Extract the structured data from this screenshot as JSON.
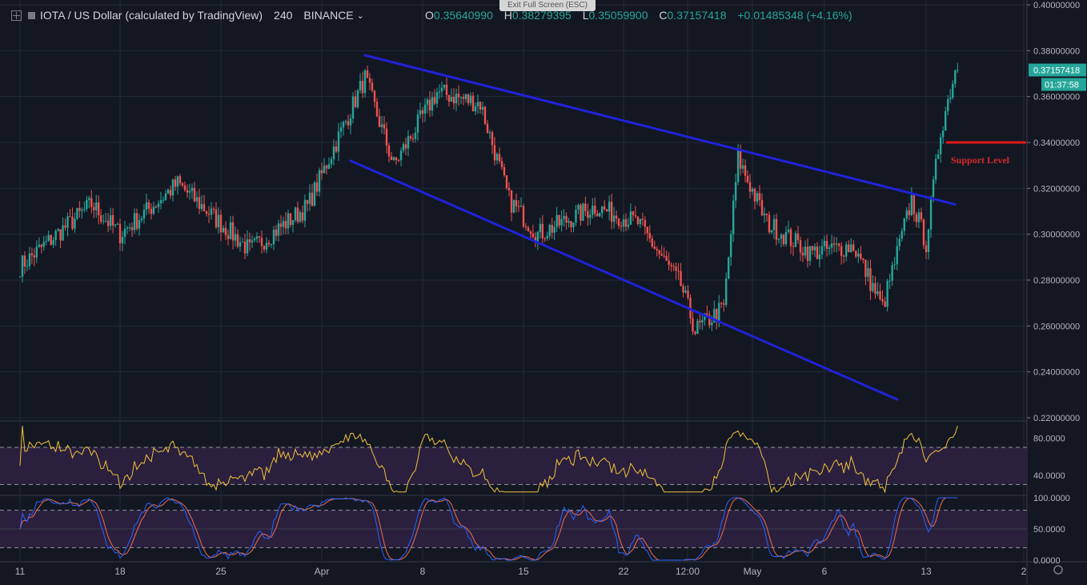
{
  "header": {
    "symbol": "IOTA / US Dollar (calculated by TradingView)",
    "interval": "240",
    "exchange": "BINANCE",
    "exit_fullscreen": "Exit Full Screen (ESC)",
    "ohlc": {
      "o_label": "O",
      "o": "0.35640990",
      "h_label": "H",
      "h": "0.38279395",
      "l_label": "L",
      "l": "0.35059900",
      "c_label": "C",
      "c": "0.37157418",
      "change": "+0.01485348 (+4.16%)"
    }
  },
  "price_badge": "0.37157418",
  "countdown_badge": "01:37:58",
  "annotation": "Support Level",
  "colors": {
    "up": "#26a69a",
    "down": "#ef5350",
    "channel": "#1f22d8",
    "support": "#e01919",
    "rsi": "#f0c23b",
    "k": "#2962ff",
    "d": "#ef6c4e"
  },
  "chart_data": [
    {
      "type": "candlestick",
      "y_ticks": [
        "0.40000000",
        "0.38000000",
        "0.36000000",
        "0.34000000",
        "0.32000000",
        "0.30000000",
        "0.28000000",
        "0.26000000",
        "0.24000000",
        "0.22000000"
      ],
      "ylim": [
        0.22,
        0.4
      ],
      "x_ticks": [
        "11",
        "18",
        "25",
        "Apr",
        "8",
        "15",
        "22",
        "12:00",
        "May",
        "6",
        "13",
        "2"
      ],
      "key_points": [
        {
          "t": "Mar 11",
          "close": 0.286
        },
        {
          "t": "Mar 16",
          "close": 0.313
        },
        {
          "t": "Mar 18",
          "close": 0.3
        },
        {
          "t": "Mar 22",
          "close": 0.322
        },
        {
          "t": "Mar 27",
          "close": 0.293
        },
        {
          "t": "Mar 31",
          "close": 0.312
        },
        {
          "t": "Apr 3",
          "close": 0.368
        },
        {
          "t": "Apr 5",
          "close": 0.33
        },
        {
          "t": "Apr 8",
          "close": 0.362
        },
        {
          "t": "Apr 11",
          "close": 0.357
        },
        {
          "t": "Apr 13",
          "close": 0.315
        },
        {
          "t": "Apr 15",
          "close": 0.3
        },
        {
          "t": "Apr 19",
          "close": 0.312
        },
        {
          "t": "Apr 22",
          "close": 0.305
        },
        {
          "t": "Apr 25",
          "close": 0.278
        },
        {
          "t": "Apr 26",
          "close": 0.258
        },
        {
          "t": "Apr 28",
          "close": 0.268
        },
        {
          "t": "Apr 29",
          "close": 0.333
        },
        {
          "t": "May 1",
          "close": 0.305
        },
        {
          "t": "May 4",
          "close": 0.292
        },
        {
          "t": "May 7",
          "close": 0.295
        },
        {
          "t": "May 9",
          "close": 0.268
        },
        {
          "t": "May 11",
          "close": 0.315
        },
        {
          "t": "May 12",
          "close": 0.296
        },
        {
          "t": "May 13",
          "close": 0.345
        },
        {
          "t": "May 14",
          "close": 0.3716
        }
      ],
      "trendlines": [
        {
          "name": "upper channel",
          "from": {
            "t": "Apr 3",
            "price": 0.378
          },
          "to": {
            "t": "May 14",
            "price": 0.313
          }
        },
        {
          "name": "lower channel",
          "from": {
            "t": "Apr 2",
            "price": 0.332
          },
          "to": {
            "t": "May 10",
            "price": 0.228
          }
        }
      ],
      "support_level": 0.34
    },
    {
      "type": "line",
      "y_ticks": [
        "80.0000",
        "40.0000"
      ],
      "ylim": [
        20,
        95
      ],
      "bands": [
        70,
        30
      ]
    },
    {
      "type": "line",
      "y_ticks": [
        "100.0000",
        "50.0000",
        "0.0000"
      ],
      "ylim": [
        0,
        100
      ],
      "bands": [
        80,
        20
      ]
    }
  ]
}
